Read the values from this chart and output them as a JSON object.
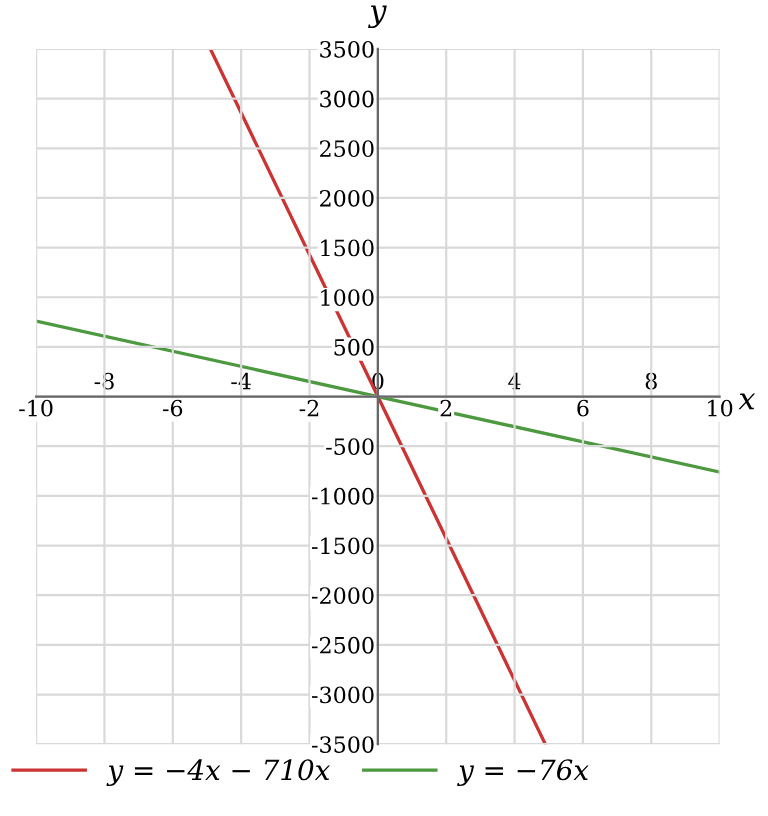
{
  "chart_data": {
    "type": "line",
    "xlabel": "x",
    "ylabel": "y",
    "series": [
      {
        "name": "y = −4x − 710x",
        "color": "#cc3333",
        "x": [
          -4.9,
          0,
          4.9
        ],
        "values": [
          3500,
          0,
          -3500
        ]
      },
      {
        "name": "y = −76x",
        "color": "#4d9940",
        "x": [
          -10,
          0,
          10
        ],
        "values": [
          760,
          0,
          -760
        ]
      }
    ],
    "xlim": [
      -10,
      10
    ],
    "ylim": [
      -3500,
      3500
    ],
    "xticks": [
      -10,
      {
        "value": -8,
        "label": null
      },
      -6,
      {
        "value": -4,
        "label": null
      },
      -2,
      {
        "value": 0,
        "label": null
      },
      2,
      {
        "value": 4,
        "label": null
      },
      6,
      {
        "value": 8,
        "label": null
      },
      10
    ],
    "x2lim": [
      -10,
      10
    ],
    "x2ticks": [
      -8,
      -4,
      0,
      4,
      8
    ],
    "yticks": [
      -3500,
      -3000,
      -2500,
      -2000,
      -1500,
      -1000,
      -500,
      {
        "value": 0,
        "label": null
      },
      500,
      1000,
      1500,
      2000,
      2500,
      3000,
      3500
    ],
    "grid": true,
    "legend": "bottom",
    "marker": "none",
    "line_style": "solid"
  }
}
